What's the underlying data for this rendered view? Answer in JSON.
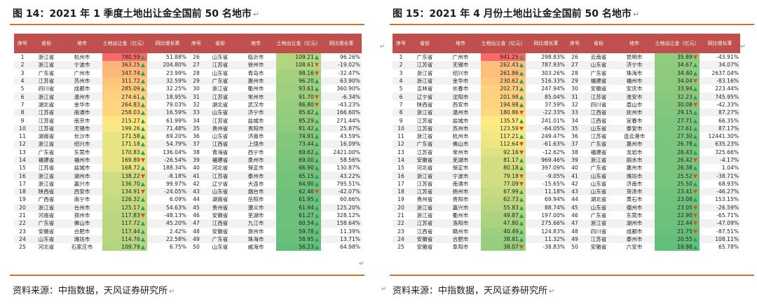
{
  "left": {
    "title": "图 14：2021 年 1 季度土地出让金全国前 50 名地市",
    "source": "资料来源：中指数据，天风证券研究所",
    "headers": [
      "序号",
      "省份",
      "地市",
      "土地出让金（亿元）",
      "同比增长率",
      "序号",
      "省份",
      "地市",
      "土地出让金（亿元）",
      "同比增长率"
    ],
    "rows": [
      [
        1,
        "浙江省",
        "杭州市",
        "780.59",
        "up",
        "51.88%",
        26,
        "山东省",
        "临沂市",
        "109.21",
        "up",
        "96.26%"
      ],
      [
        2,
        "浙江省",
        "宁波市",
        "363.25",
        "up",
        "204.80%",
        27,
        "江苏省",
        "徐州市",
        "108.61",
        "down",
        "-19.02%"
      ],
      [
        3,
        "广东省",
        "广州市",
        "347.74",
        "up",
        "23.99%",
        28,
        "山东省",
        "青岛市",
        "98.16",
        "down",
        "-32.47%"
      ],
      [
        4,
        "江苏省",
        "苏州市",
        "311.72",
        "up",
        "32.59%",
        29,
        "广东省",
        "惠州市",
        "96.20",
        "up",
        "63.90%"
      ],
      [
        5,
        "四川省",
        "成都市",
        "285.09",
        "up",
        "32.25%",
        30,
        "浙江省",
        "衢州市",
        "93.61",
        "up",
        "360.90%"
      ],
      [
        6,
        "浙江省",
        "温州市",
        "274.61",
        "up",
        "18.95%",
        31,
        "江苏省",
        "常州市",
        "91.70",
        "down",
        "-6.34%"
      ],
      [
        7,
        "湖北省",
        "金华市",
        "264.83",
        "up",
        "79.03%",
        32,
        "湖北省",
        "武汉市",
        "86.80",
        "down",
        "-43.23%"
      ],
      [
        8,
        "江苏省",
        "南通市",
        "258.03",
        "up",
        "16.59%",
        33,
        "山东省",
        "济宁市",
        "85.62",
        "up",
        "166.60%"
      ],
      [
        9,
        "江苏省",
        "南京市",
        "215.27",
        "up",
        "61.99%",
        34,
        "江苏省",
        "盐城市",
        "85.29",
        "up",
        "271.44%"
      ],
      [
        10,
        "江苏省",
        "无锡市",
        "199.26",
        "up",
        "71.48%",
        35,
        "贵州省",
        "贵阳市",
        "81.42",
        "up",
        "25.87%"
      ],
      [
        11,
        "湖南省",
        "长沙市",
        "171.58",
        "up",
        "69.20%",
        36,
        "山东省",
        "济南市",
        "74.91",
        "up",
        "43.59%"
      ],
      [
        12,
        "浙江省",
        "绍兴市",
        "171.18",
        "up",
        "54.79%",
        37,
        "江西省",
        "上饶市",
        "73.44",
        "up",
        "16.09%"
      ],
      [
        13,
        "广东省",
        "东莞市",
        "170.83",
        "up",
        "136.04%",
        38,
        "青海省",
        "西宁市",
        "69.62",
        "up",
        "2421.00%"
      ],
      [
        14,
        "福建省",
        "福州市",
        "169.89",
        "down",
        "-26.54%",
        39,
        "福建省",
        "泉州市",
        "69.00",
        "up",
        "58.56%"
      ],
      [
        15,
        "江苏省",
        "盐城市",
        "168.72",
        "up",
        "188.34%",
        40,
        "河北省",
        "保定市",
        "66.90",
        "up",
        "130.87%"
      ],
      [
        16,
        "浙江省",
        "湖州市",
        "138.22",
        "down",
        "-8.18%",
        41,
        "江苏省",
        "泰州市",
        "65.15",
        "up",
        "43.22%"
      ],
      [
        17,
        "浙江省",
        "嘉兴市",
        "136.70",
        "up",
        "99.97%",
        42,
        "辽宁省",
        "大连市",
        "64.90",
        "up",
        "795.51%"
      ],
      [
        18,
        "陕西省",
        "西安市",
        "134.91",
        "down",
        "-24.05%",
        43,
        "山东省",
        "烟台市",
        "62.46",
        "down",
        "-42.07%"
      ],
      [
        19,
        "广西省",
        "南宁市",
        "126.32",
        "up",
        "6.09%",
        44,
        "湖南省",
        "岳阳市",
        "61.95",
        "up",
        "60.66%"
      ],
      [
        20,
        "浙江省",
        "台州市",
        "125.17",
        "up",
        "54.63%",
        45,
        "贵州省",
        "遵义市",
        "61.94",
        "up",
        "125.20%"
      ],
      [
        21,
        "河南省",
        "郑州市",
        "117.83",
        "down",
        "-48.13%",
        46,
        "安徽省",
        "芜湖市",
        "61.27",
        "up",
        "328.12%"
      ],
      [
        22,
        "广东省",
        "佛山市",
        "117.72",
        "up",
        "45.20%",
        47,
        "江西省",
        "九江市",
        "60.54",
        "up",
        "158.64%"
      ],
      [
        23,
        "安徽省",
        "合肥市",
        "117.44",
        "up",
        "2.42%",
        48,
        "安徽省",
        "滁州市",
        "59.78",
        "up",
        "11.39%"
      ],
      [
        24,
        "山东省",
        "潍坊市",
        "114.76",
        "up",
        "22.58%",
        49,
        "广东省",
        "珠海市",
        "58.95",
        "up",
        "13.71%"
      ],
      [
        25,
        "河北省",
        "石家庄市",
        "109.79",
        "up",
        "6.75%",
        50,
        "山东省",
        "威海市",
        "56.23",
        "up",
        "64.98%"
      ]
    ]
  },
  "right": {
    "title": "图 15：2021 年 4 月份土地出让金全国前 50 名地市",
    "source": "资料来源：中指数据，天风证券研究所",
    "headers": [
      "序号",
      "省份",
      "地市",
      "土地出让金（亿元）",
      "同比增长率",
      "序号",
      "省份",
      "地市",
      "土地出让金（亿元）",
      "同比增长率"
    ],
    "rows": [
      [
        1,
        "广东省",
        "广州市",
        "941.25",
        "up",
        "298.83%",
        26,
        "云南省",
        "昆明市",
        "35.89",
        "down",
        "-43.91%"
      ],
      [
        2,
        "江苏省",
        "无锡市",
        "262.43",
        "up",
        "787.93%",
        27,
        "山东省",
        "济宁市",
        "34.67",
        "up",
        "34.07%"
      ],
      [
        3,
        "浙江省",
        "绍兴市",
        "261.86",
        "up",
        "303.26%",
        28,
        "广东省",
        "珠海市",
        "34.40",
        "up",
        "2637.04%"
      ],
      [
        4,
        "浙江省",
        "金华市",
        "230.62",
        "up",
        "516.33%",
        29,
        "福建省",
        "福州市",
        "34.04",
        "down",
        "-83.16%"
      ],
      [
        5,
        "吉林省",
        "长春市",
        "202.73",
        "up",
        "247.94%",
        30,
        "安徽省",
        "安庆市",
        "33.94",
        "up",
        "223.44%"
      ],
      [
        6,
        "辽宁省",
        "沈阳市",
        "201.98",
        "up",
        "85.04%",
        31,
        "江苏省",
        "淮安市",
        "32.23",
        "up",
        "745.95%"
      ],
      [
        7,
        "陕西省",
        "西安市",
        "194.98",
        "up",
        "37.59%",
        32,
        "四川省",
        "眉山市",
        "30.08",
        "down",
        "-42.33%"
      ],
      [
        8,
        "浙江省",
        "温州市",
        "180.86",
        "down",
        "-22.33%",
        33,
        "江西省",
        "抚州市",
        "29.15",
        "up",
        "87.27%"
      ],
      [
        9,
        "江苏省",
        "盐城市",
        "135.57",
        "up",
        "241.01%",
        34,
        "江西省",
        "宜春市",
        "27.71",
        "up",
        "66.35%"
      ],
      [
        10,
        "江苏省",
        "苏州市",
        "123.59",
        "down",
        "-64.05%",
        35,
        "山东省",
        "泰安市",
        "27.61",
        "up",
        "87.17%"
      ],
      [
        11,
        "浙江省",
        "杭州市",
        "117.21",
        "up",
        "249.47%",
        36,
        "江苏省",
        "连云港市",
        "27.30",
        "up",
        "12441.30%"
      ],
      [
        12,
        "广东省",
        "佛山市",
        "112.64",
        "down",
        "-61.63%",
        37,
        "广东省",
        "惠州市",
        "26.78",
        "up",
        "635.23%"
      ],
      [
        13,
        "江苏省",
        "常州市",
        "92.16",
        "down",
        "-12.62%",
        38,
        "福建省",
        "龙岩市",
        "26.43",
        "up",
        "325.66%"
      ],
      [
        14,
        "安徽省",
        "芜湖市",
        "81.17",
        "up",
        "969.46%",
        39,
        "浙江省",
        "丽水市",
        "26.42",
        "down",
        "-4.17%"
      ],
      [
        15,
        "河北省",
        "保定市",
        "80.18",
        "up",
        "397.09%",
        40,
        "广东省",
        "惠州市",
        "26.38",
        "up",
        "1.04%"
      ],
      [
        16,
        "浙江省",
        "宁波市",
        "79.18",
        "down",
        "-9.05%",
        41,
        "山东省",
        "潍坊市",
        "25.52",
        "down",
        "-38.71%"
      ],
      [
        17,
        "江苏省",
        "南通市",
        "77.09",
        "down",
        "-15.65%",
        42,
        "山东省",
        "济南市",
        "25.50",
        "up",
        "68.93%"
      ],
      [
        18,
        "江苏省",
        "扬州市",
        "67.99",
        "up",
        "11.18%",
        43,
        "山东省",
        "菏泽市",
        "23.41",
        "down",
        "-46.27%"
      ],
      [
        19,
        "贵州省",
        "贵阳市",
        "62.73",
        "up",
        "69.94%",
        44,
        "湖北省",
        "黄石市",
        "23.08",
        "up",
        "153.15%"
      ],
      [
        20,
        "浙江省",
        "嘉兴市",
        "55.83",
        "up",
        "88.74%",
        45,
        "山东省",
        "德州市",
        "23.05",
        "down",
        "-26.59%"
      ],
      [
        21,
        "浙江省",
        "衢州市",
        "49.87",
        "up",
        "197.00%",
        46,
        "广东省",
        "东莞市",
        "22.90",
        "down",
        "-65.71%"
      ],
      [
        22,
        "江苏省",
        "洛阳市",
        "47.80",
        "up",
        "275.66%",
        47,
        "浙江省",
        "湖州市",
        "22.44",
        "down",
        "-47.09%"
      ],
      [
        23,
        "江西省",
        "赣州市",
        "40.49",
        "up",
        "124.83%",
        48,
        "四川省",
        "成都市",
        "21.75",
        "down",
        "-87.51%"
      ],
      [
        24,
        "安徽省",
        "合肥市",
        "38.81",
        "up",
        "11.32%",
        49,
        "江苏省",
        "泰州市",
        "20.55",
        "up",
        "108.11%"
      ],
      [
        25,
        "安徽省",
        "阜阳市",
        "38.07",
        "down",
        "-38.83%",
        50,
        "安徽省",
        "六安市",
        "19.98",
        "up",
        "65.78%"
      ]
    ]
  }
}
